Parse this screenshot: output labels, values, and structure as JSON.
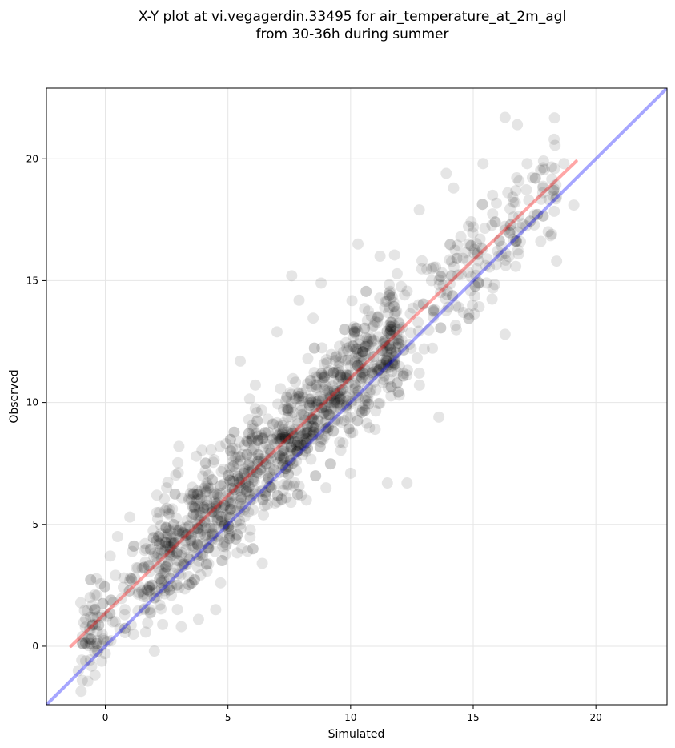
{
  "chart_data": {
    "type": "scatter",
    "title_lines": [
      "X-Y plot at vi.vegagerdin.33495 for air_temperature_at_2m_agl",
      "from 30-36h during summer"
    ],
    "xlabel": "Simulated",
    "ylabel": "Observed",
    "xlim": [
      -2.4,
      22.9
    ],
    "ylim": [
      -2.4,
      22.9
    ],
    "xticks": [
      0,
      5,
      10,
      15,
      20
    ],
    "yticks": [
      0,
      5,
      10,
      15,
      20
    ],
    "grid": true,
    "point_color": "#000000",
    "point_opacity": 0.1,
    "points_sample": [
      [
        -1.1,
        -1.0
      ],
      [
        -0.8,
        -0.6
      ],
      [
        -0.6,
        0.1
      ],
      [
        -0.5,
        0.9
      ],
      [
        -0.6,
        1.2
      ],
      [
        -0.3,
        -0.2
      ],
      [
        0.0,
        -0.3
      ],
      [
        0.1,
        0.2
      ],
      [
        0.2,
        3.7
      ],
      [
        0.5,
        4.5
      ],
      [
        0.3,
        1.0
      ],
      [
        0.8,
        1.5
      ],
      [
        1.0,
        5.3
      ],
      [
        1.2,
        2.8
      ],
      [
        1.5,
        3.2
      ],
      [
        1.7,
        2.0
      ],
      [
        2.0,
        -0.2
      ],
      [
        2.1,
        6.2
      ],
      [
        2.5,
        6.5
      ],
      [
        2.8,
        3.0
      ],
      [
        3.0,
        8.2
      ],
      [
        3.1,
        0.8
      ],
      [
        3.5,
        4.5
      ],
      [
        3.8,
        1.1
      ],
      [
        4.2,
        4.2
      ],
      [
        4.5,
        1.5
      ],
      [
        4.7,
        2.6
      ],
      [
        5.0,
        5.0
      ],
      [
        5.5,
        11.7
      ],
      [
        5.8,
        3.9
      ],
      [
        6.0,
        7.2
      ],
      [
        6.4,
        3.4
      ],
      [
        7.0,
        12.9
      ],
      [
        7.2,
        8.0
      ],
      [
        7.5,
        9.0
      ],
      [
        7.6,
        15.2
      ],
      [
        7.9,
        14.2
      ],
      [
        8.2,
        6.0
      ],
      [
        8.5,
        9.5
      ],
      [
        8.8,
        14.9
      ],
      [
        9.0,
        6.5
      ],
      [
        9.5,
        10.0
      ],
      [
        10.0,
        7.1
      ],
      [
        10.3,
        16.5
      ],
      [
        10.6,
        12.0
      ],
      [
        11.0,
        8.9
      ],
      [
        11.2,
        16.0
      ],
      [
        11.5,
        6.7
      ],
      [
        12.0,
        13.0
      ],
      [
        12.3,
        6.7
      ],
      [
        12.8,
        17.9
      ],
      [
        13.0,
        12.2
      ],
      [
        13.3,
        15.0
      ],
      [
        13.6,
        9.4
      ],
      [
        13.9,
        19.4
      ],
      [
        14.2,
        18.8
      ],
      [
        14.6,
        13.7
      ],
      [
        15.0,
        17.2
      ],
      [
        15.4,
        19.8
      ],
      [
        15.8,
        14.7
      ],
      [
        16.3,
        12.8
      ],
      [
        16.3,
        21.7
      ],
      [
        16.8,
        21.4
      ],
      [
        17.2,
        19.8
      ],
      [
        17.5,
        17.7
      ],
      [
        18.2,
        16.9
      ],
      [
        18.3,
        20.8
      ],
      [
        18.4,
        15.8
      ],
      [
        18.7,
        19.8
      ],
      [
        19.1,
        18.1
      ]
    ],
    "lines": [
      {
        "kind": "regression",
        "color": "#ff0000",
        "opacity": 0.35,
        "x": [
          -1.4,
          19.2
        ],
        "y": [
          0.0,
          19.9
        ]
      },
      {
        "kind": "identity",
        "color": "#0000ff",
        "opacity": 0.35,
        "x": [
          -2.4,
          22.9
        ],
        "y": [
          -2.4,
          22.9
        ]
      }
    ]
  }
}
